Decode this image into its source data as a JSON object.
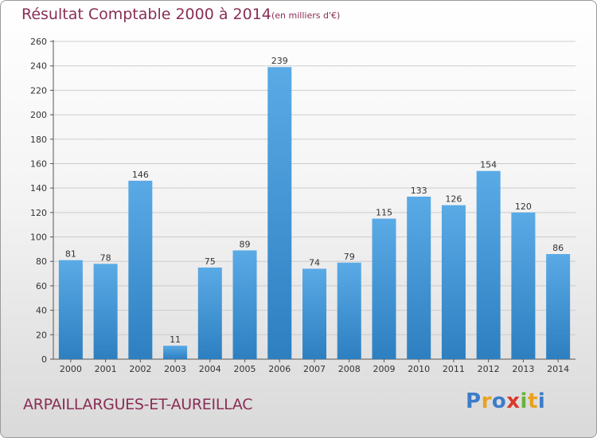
{
  "header": {
    "title": "Résultat Comptable 2000 à 2014",
    "subtitle": "(en milliers d'€)"
  },
  "footer": {
    "commune": "ARPAILLARGUES-ET-AUREILLAC",
    "logo_letters": [
      "P",
      "r",
      "o",
      "x",
      "i",
      "t",
      "i"
    ],
    "logo_colors": [
      "#3d7cc9",
      "#e8a21e",
      "#3d7cc9",
      "#d93a2b",
      "#68b43a",
      "#e8a21e",
      "#3d7cc9"
    ]
  },
  "colors": {
    "bar_top": "#5aaae6",
    "bar_bottom": "#2d7fc0",
    "title": "#8a2d55",
    "grid": "#cccccc"
  },
  "chart_data": {
    "type": "bar",
    "categories": [
      "2000",
      "2001",
      "2002",
      "2003",
      "2004",
      "2005",
      "2006",
      "2007",
      "2008",
      "2009",
      "2010",
      "2011",
      "2012",
      "2013",
      "2014"
    ],
    "values": [
      81,
      78,
      146,
      11,
      75,
      89,
      239,
      74,
      79,
      115,
      133,
      126,
      154,
      120,
      86
    ],
    "data_labels": [
      "81",
      "78",
      "146",
      "11",
      "75",
      "89",
      "239",
      "74",
      "79",
      "115",
      "133",
      "126",
      "154",
      "120",
      "86"
    ],
    "yticks": [
      "0",
      "20",
      "40",
      "60",
      "80",
      "100",
      "120",
      "140",
      "160",
      "180",
      "200",
      "220",
      "240",
      "260"
    ],
    "ylim": [
      0,
      260
    ],
    "grid": true,
    "legend": "none"
  }
}
